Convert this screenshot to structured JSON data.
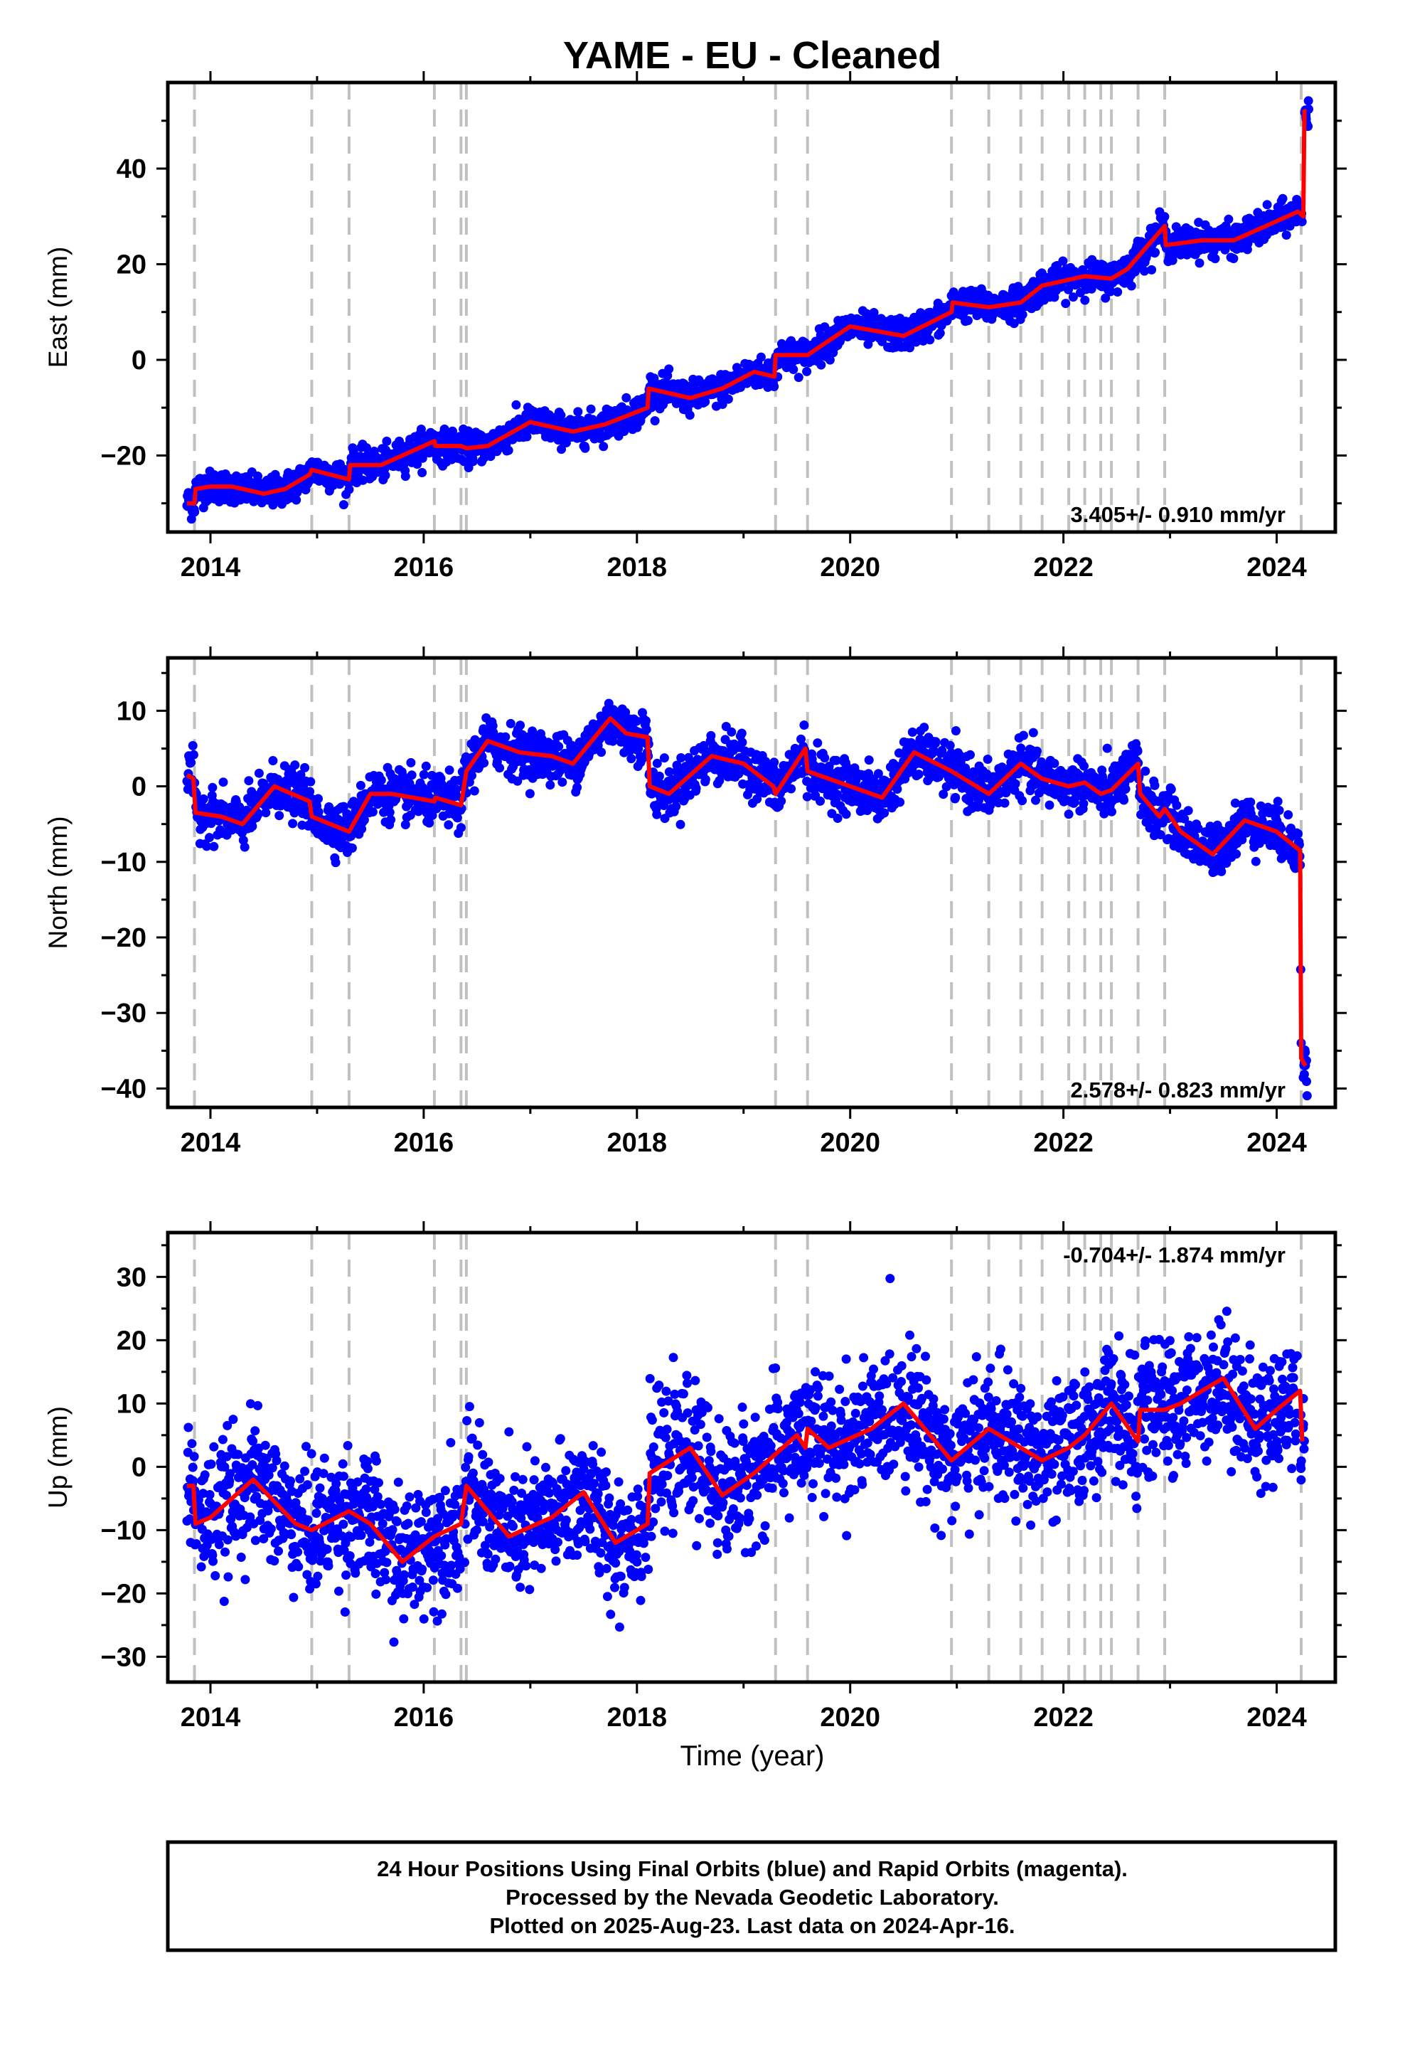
{
  "title": "YAME  - EU - Cleaned",
  "footer": {
    "lines": [
      "24 Hour Positions Using Final Orbits (blue) and Rapid Orbits (magenta).",
      "Processed by the Nevada Geodetic Laboratory.",
      "Plotted on 2025-Aug-23. Last data on 2024-Apr-16."
    ]
  },
  "colors": {
    "points": "#0000ff",
    "model": "#ff0000",
    "steps": "#c0c0c0",
    "frame": "#000000"
  },
  "chart_data": [
    {
      "type": "scatter",
      "name": "east",
      "ylabel": "East (mm)",
      "xlabel": "",
      "xlim": [
        2013.6,
        2024.55
      ],
      "ylim": [
        -36,
        58
      ],
      "xticks": [
        2014,
        2016,
        2018,
        2020,
        2022,
        2024
      ],
      "yticks": [
        -20,
        0,
        20,
        40
      ],
      "rate_label": "3.405+/- 0.910 mm/yr",
      "rate_position": "bottom-right",
      "step_lines": [
        2013.85,
        2014.95,
        2015.3,
        2016.1,
        2016.35,
        2016.4,
        2019.3,
        2019.6,
        2020.95,
        2021.3,
        2021.6,
        2021.8,
        2022.05,
        2022.2,
        2022.35,
        2022.45,
        2022.7,
        2022.95,
        2024.23
      ],
      "model": [
        [
          2013.78,
          -30
        ],
        [
          2013.85,
          -30
        ],
        [
          2013.86,
          -27
        ],
        [
          2014.0,
          -26.5
        ],
        [
          2014.2,
          -26.5
        ],
        [
          2014.5,
          -28
        ],
        [
          2014.7,
          -27
        ],
        [
          2014.93,
          -24
        ],
        [
          2014.95,
          -23
        ],
        [
          2015.3,
          -25
        ],
        [
          2015.31,
          -22
        ],
        [
          2015.6,
          -22
        ],
        [
          2016.1,
          -17
        ],
        [
          2016.11,
          -18
        ],
        [
          2016.35,
          -18
        ],
        [
          2016.4,
          -18.5
        ],
        [
          2016.6,
          -18
        ],
        [
          2017.0,
          -13
        ],
        [
          2017.4,
          -15
        ],
        [
          2017.7,
          -13.5
        ],
        [
          2018.1,
          -10
        ],
        [
          2018.11,
          -6
        ],
        [
          2018.5,
          -8
        ],
        [
          2018.8,
          -6
        ],
        [
          2019.1,
          -2.5
        ],
        [
          2019.29,
          -3.5
        ],
        [
          2019.3,
          1
        ],
        [
          2019.5,
          1
        ],
        [
          2019.6,
          1
        ],
        [
          2020.0,
          7
        ],
        [
          2020.5,
          5
        ],
        [
          2020.95,
          10
        ],
        [
          2020.96,
          12
        ],
        [
          2021.3,
          11
        ],
        [
          2021.6,
          12
        ],
        [
          2021.8,
          15.5
        ],
        [
          2022.2,
          17.5
        ],
        [
          2022.45,
          17
        ],
        [
          2022.6,
          19
        ],
        [
          2022.95,
          28
        ],
        [
          2022.96,
          24
        ],
        [
          2023.3,
          25
        ],
        [
          2023.6,
          25
        ],
        [
          2023.9,
          28
        ],
        [
          2024.2,
          31
        ],
        [
          2024.25,
          30
        ],
        [
          2024.26,
          52
        ],
        [
          2024.28,
          52
        ]
      ],
      "data_summary": "daily GPS positions, approx. 2013.8 to 2024.3, scatter about 1-3 mm around model"
    },
    {
      "type": "scatter",
      "name": "north",
      "ylabel": "North (mm)",
      "xlabel": "",
      "xlim": [
        2013.6,
        2024.55
      ],
      "ylim": [
        -42.5,
        17
      ],
      "xticks": [
        2014,
        2016,
        2018,
        2020,
        2022,
        2024
      ],
      "yticks": [
        -40,
        -30,
        -20,
        -10,
        0,
        10
      ],
      "rate_label": "2.578+/- 0.823 mm/yr",
      "rate_position": "bottom-right",
      "step_lines": [
        2013.85,
        2014.95,
        2015.3,
        2016.1,
        2016.35,
        2016.4,
        2019.3,
        2019.6,
        2020.95,
        2021.3,
        2021.6,
        2021.8,
        2022.05,
        2022.2,
        2022.35,
        2022.45,
        2022.7,
        2022.95,
        2024.23
      ],
      "model": [
        [
          2013.78,
          1.5
        ],
        [
          2013.84,
          1.0
        ],
        [
          2013.86,
          -3.5
        ],
        [
          2014.1,
          -4
        ],
        [
          2014.3,
          -5
        ],
        [
          2014.6,
          0
        ],
        [
          2014.93,
          -2
        ],
        [
          2014.95,
          -4
        ],
        [
          2015.3,
          -6
        ],
        [
          2015.5,
          -1
        ],
        [
          2015.7,
          -1
        ],
        [
          2016.1,
          -2
        ],
        [
          2016.11,
          -1.5
        ],
        [
          2016.35,
          -2.5
        ],
        [
          2016.4,
          2
        ],
        [
          2016.6,
          6
        ],
        [
          2016.9,
          4.5
        ],
        [
          2017.2,
          4
        ],
        [
          2017.4,
          3
        ],
        [
          2017.75,
          9
        ],
        [
          2017.9,
          7
        ],
        [
          2018.1,
          6.5
        ],
        [
          2018.12,
          0
        ],
        [
          2018.3,
          -1
        ],
        [
          2018.7,
          4
        ],
        [
          2019.0,
          3
        ],
        [
          2019.28,
          0
        ],
        [
          2019.3,
          -1
        ],
        [
          2019.58,
          5
        ],
        [
          2019.6,
          2
        ],
        [
          2020.0,
          0
        ],
        [
          2020.3,
          -1.5
        ],
        [
          2020.6,
          4.5
        ],
        [
          2020.95,
          2
        ],
        [
          2021.3,
          -1
        ],
        [
          2021.6,
          3
        ],
        [
          2021.8,
          1
        ],
        [
          2022.05,
          0
        ],
        [
          2022.2,
          0.5
        ],
        [
          2022.35,
          -1
        ],
        [
          2022.45,
          -0.5
        ],
        [
          2022.7,
          3
        ],
        [
          2022.72,
          -1
        ],
        [
          2022.9,
          -4
        ],
        [
          2022.95,
          -3
        ],
        [
          2023.1,
          -6
        ],
        [
          2023.4,
          -9
        ],
        [
          2023.7,
          -4.5
        ],
        [
          2024.0,
          -6
        ],
        [
          2024.22,
          -8.5
        ],
        [
          2024.23,
          -36
        ],
        [
          2024.27,
          -37
        ]
      ],
      "data_summary": "daily GPS positions, scatter about 1-3 mm around model, post-event offset near -36 mm"
    },
    {
      "type": "scatter",
      "name": "up",
      "ylabel": "Up (mm)",
      "xlabel": "Time (year)",
      "xlim": [
        2013.6,
        2024.55
      ],
      "ylim": [
        -34,
        37
      ],
      "xticks": [
        2014,
        2016,
        2018,
        2020,
        2022,
        2024
      ],
      "yticks": [
        -30,
        -20,
        -10,
        0,
        10,
        20,
        30
      ],
      "rate_label": "-0.704+/- 1.874 mm/yr",
      "rate_position": "top-right",
      "step_lines": [
        2013.85,
        2014.95,
        2015.3,
        2016.1,
        2016.35,
        2016.4,
        2019.3,
        2019.6,
        2020.95,
        2021.3,
        2021.6,
        2021.8,
        2022.05,
        2022.2,
        2022.35,
        2022.45,
        2022.7,
        2022.95,
        2024.23
      ],
      "model": [
        [
          2013.78,
          -3
        ],
        [
          2013.84,
          -3
        ],
        [
          2013.86,
          -9
        ],
        [
          2014.0,
          -8
        ],
        [
          2014.4,
          -2
        ],
        [
          2014.8,
          -9
        ],
        [
          2014.95,
          -10
        ],
        [
          2015.3,
          -7
        ],
        [
          2015.5,
          -9
        ],
        [
          2015.8,
          -15
        ],
        [
          2016.1,
          -11
        ],
        [
          2016.35,
          -9
        ],
        [
          2016.4,
          -3
        ],
        [
          2016.8,
          -11
        ],
        [
          2017.2,
          -8
        ],
        [
          2017.5,
          -4
        ],
        [
          2017.8,
          -12
        ],
        [
          2018.1,
          -9
        ],
        [
          2018.12,
          -1
        ],
        [
          2018.5,
          3
        ],
        [
          2018.8,
          -4.5
        ],
        [
          2019.1,
          -1
        ],
        [
          2019.3,
          2
        ],
        [
          2019.5,
          5
        ],
        [
          2019.58,
          3
        ],
        [
          2019.6,
          6
        ],
        [
          2019.8,
          3
        ],
        [
          2020.2,
          6
        ],
        [
          2020.5,
          10
        ],
        [
          2020.95,
          1
        ],
        [
          2021.3,
          6
        ],
        [
          2021.6,
          3
        ],
        [
          2021.8,
          1
        ],
        [
          2022.05,
          3
        ],
        [
          2022.2,
          5
        ],
        [
          2022.45,
          10
        ],
        [
          2022.7,
          4
        ],
        [
          2022.72,
          9
        ],
        [
          2022.95,
          9
        ],
        [
          2023.1,
          10
        ],
        [
          2023.5,
          14
        ],
        [
          2023.8,
          6
        ],
        [
          2024.0,
          9
        ],
        [
          2024.22,
          12
        ],
        [
          2024.24,
          4
        ]
      ],
      "data_summary": "daily GPS positions, scatter about 3-7 mm around model"
    }
  ]
}
